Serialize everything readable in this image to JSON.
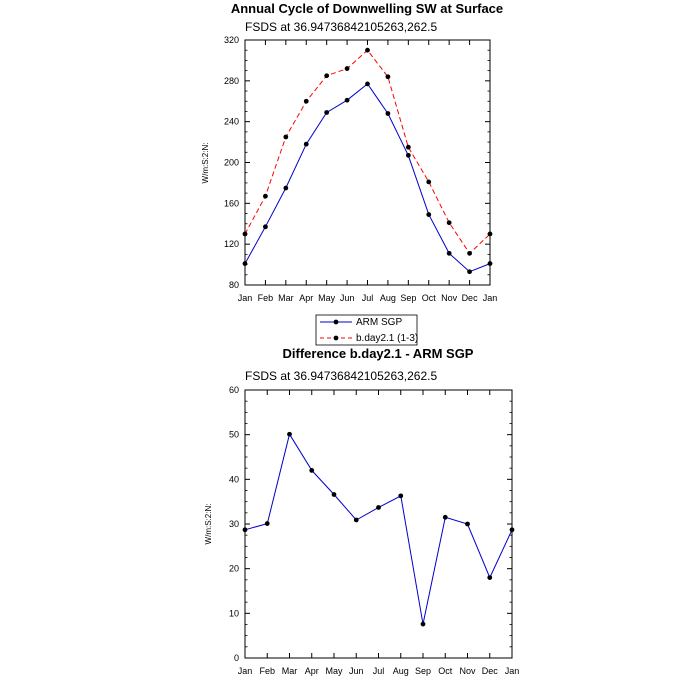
{
  "chart_data": [
    {
      "type": "line",
      "title": "Annual Cycle of Downwelling SW at Surface",
      "subtitle": "FSDS at 36.94736842105263,262.5",
      "ylabel": "W/m:S:2:N:",
      "categories": [
        "Jan",
        "Feb",
        "Mar",
        "Apr",
        "May",
        "Jun",
        "Jul",
        "Aug",
        "Sep",
        "Oct",
        "Nov",
        "Dec",
        "Jan"
      ],
      "ylim": [
        80,
        320
      ],
      "yticks": [
        80,
        120,
        160,
        200,
        240,
        280,
        320
      ],
      "series": [
        {
          "name": "ARM SGP",
          "color": "#0000cc",
          "dash": "solid",
          "values": [
            101,
            137,
            175,
            218,
            249,
            261,
            277,
            248,
            207,
            149,
            111,
            93,
            101
          ]
        },
        {
          "name": "b.day2.1 (1-3)",
          "color": "#ff0000",
          "dash": "dashed",
          "values": [
            130,
            167,
            225,
            260,
            285,
            292,
            310,
            284,
            215,
            181,
            141,
            111,
            130
          ]
        }
      ],
      "legend_position": "below"
    },
    {
      "type": "line",
      "title": "Difference b.day2.1 - ARM SGP",
      "subtitle": "FSDS at 36.94736842105263,262.5",
      "ylabel": "W/m:S:2:N:",
      "categories": [
        "Jan",
        "Feb",
        "Mar",
        "Apr",
        "May",
        "Jun",
        "Jul",
        "Aug",
        "Sep",
        "Oct",
        "Nov",
        "Dec",
        "Jan"
      ],
      "ylim": [
        0,
        60
      ],
      "yticks": [
        0,
        10,
        20,
        30,
        40,
        50,
        60
      ],
      "series": [
        {
          "name": "",
          "color": "#0000cc",
          "dash": "solid",
          "values": [
            28.7,
            30.1,
            50.1,
            42.0,
            36.6,
            30.9,
            33.7,
            36.3,
            7.6,
            31.5,
            30.0,
            18.0,
            28.7
          ]
        }
      ]
    }
  ]
}
